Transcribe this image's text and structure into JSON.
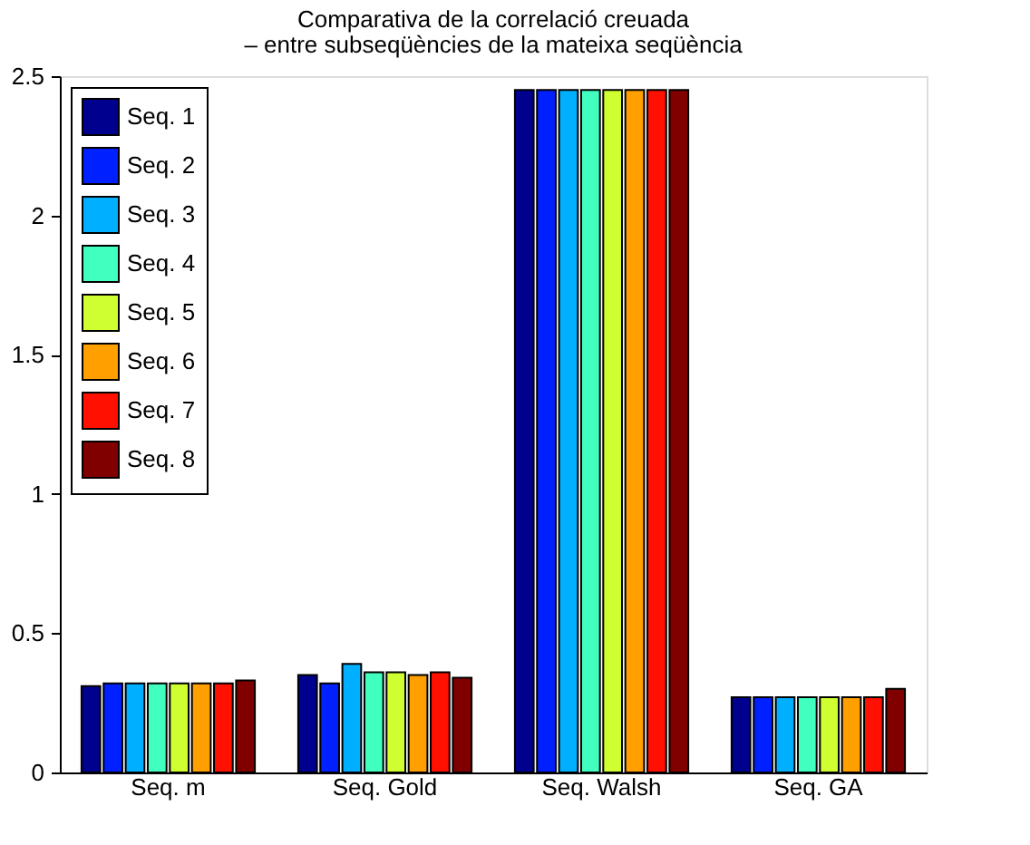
{
  "chart_data": {
    "type": "bar",
    "title": "Comparativa de la correlació creuada",
    "subtitle": "– entre subseqüències de la mateixa seqüència",
    "categories": [
      "Seq. m",
      "Seq. Gold",
      "Seq. Walsh",
      "Seq. GA"
    ],
    "series": [
      {
        "name": "Seq. 1",
        "color": "#00008f",
        "values": [
          0.31,
          0.35,
          2.45,
          0.27
        ]
      },
      {
        "name": "Seq. 2",
        "color": "#0020ff",
        "values": [
          0.32,
          0.32,
          2.45,
          0.27
        ]
      },
      {
        "name": "Seq. 3",
        "color": "#00afff",
        "values": [
          0.32,
          0.39,
          2.45,
          0.27
        ]
      },
      {
        "name": "Seq. 4",
        "color": "#40ffbf",
        "values": [
          0.32,
          0.36,
          2.45,
          0.27
        ]
      },
      {
        "name": "Seq. 5",
        "color": "#cfff30",
        "values": [
          0.32,
          0.36,
          2.45,
          0.27
        ]
      },
      {
        "name": "Seq. 6",
        "color": "#ff9f00",
        "values": [
          0.32,
          0.35,
          2.45,
          0.27
        ]
      },
      {
        "name": "Seq. 7",
        "color": "#ff1000",
        "values": [
          0.32,
          0.36,
          2.45,
          0.27
        ]
      },
      {
        "name": "Seq. 8",
        "color": "#800000",
        "values": [
          0.33,
          0.34,
          2.45,
          0.3
        ]
      }
    ],
    "ylim": [
      0,
      2.5
    ],
    "yticks": [
      0,
      0.5,
      1,
      1.5,
      2,
      2.5
    ],
    "grid": false,
    "legend": "top left"
  }
}
